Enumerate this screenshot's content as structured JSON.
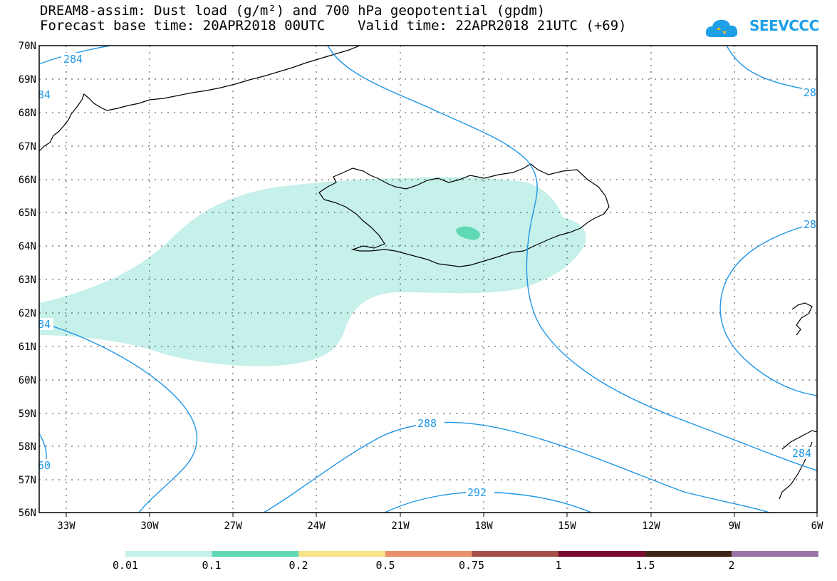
{
  "header": {
    "title_line1": "DREAM8-assim: Dust load (g/m²) and 700 hPa geopotential (gpdm)",
    "title_line2": "Forecast base time: 20APR2018 00UTC    Valid time: 22APR2018 21UTC (+69)"
  },
  "logo": {
    "text": "SEEVCCC",
    "brand_color": "#1ea0e6"
  },
  "map": {
    "lat_labels": [
      "70N",
      "69N",
      "68N",
      "67N",
      "66N",
      "65N",
      "64N",
      "63N",
      "62N",
      "61N",
      "60N",
      "59N",
      "58N",
      "57N",
      "56N"
    ],
    "lon_labels": [
      "33W",
      "30W",
      "27W",
      "24W",
      "21W",
      "18W",
      "15W",
      "12W",
      "9W",
      "6W"
    ],
    "contour_labels": [
      "284",
      "84",
      "84",
      "60",
      "288",
      "292",
      "28",
      "28",
      "284"
    ],
    "contour_color": "#1e96e6",
    "dust_colors": {
      "low": "#c6f0ea",
      "mid": "#5fd9b4"
    }
  },
  "colorbar": {
    "labels": [
      "0.01",
      "0.1",
      "0.2",
      "0.5",
      "0.75",
      "1",
      "1.5",
      "2"
    ],
    "colors": [
      "#c6f0ea",
      "#5fd9b4",
      "#f6e38a",
      "#e8906a",
      "#a65148",
      "#7a0a2e",
      "#3e2414",
      "#9a74a8"
    ]
  }
}
